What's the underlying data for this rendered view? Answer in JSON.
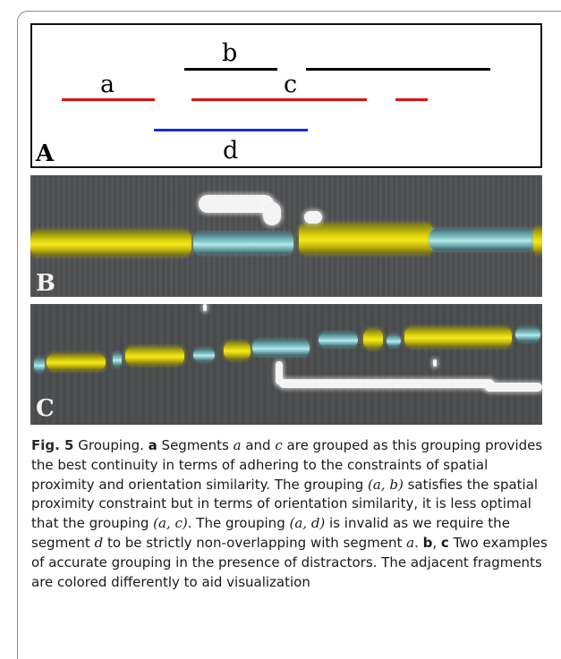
{
  "panel_a": {
    "label": "A",
    "segments": {
      "a": "a",
      "b": "b",
      "c": "c",
      "d": "d"
    },
    "colors": {
      "black": "#000000",
      "red": "#e01010",
      "blue": "#1a2ad8"
    }
  },
  "panel_b": {
    "label": "B"
  },
  "panel_c": {
    "label": "C"
  },
  "caption": {
    "fig_label": "Fig. 5",
    "title": " Grouping. ",
    "p_a": "a",
    "t1": " Segments ",
    "s_a1": "a",
    "t2": " and ",
    "s_c1": "c",
    "t3": " are grouped as this grouping provides the best continuity in terms of adhering to the constraints of spatial proximity and orientation similarity. The grouping ",
    "g_ab": "(a, b)",
    "t4": " satisfies the spatial proximity constraint but in terms of orientation similarity, it is less optimal that the grouping ",
    "g_ac": "(a, c)",
    "t5": ". The grouping ",
    "g_ad": "(a, d)",
    "t6": " is invalid as we require the segment ",
    "s_d": "d",
    "t7": " to be strictly non-overlapping with segment ",
    "s_a2": "a",
    "t8": ". ",
    "p_b": "b",
    "t9": ", ",
    "p_c": "c",
    "t10": " Two examples of accurate grouping in the presence of distractors. The adjacent fragments are colored differently to aid visualization"
  }
}
